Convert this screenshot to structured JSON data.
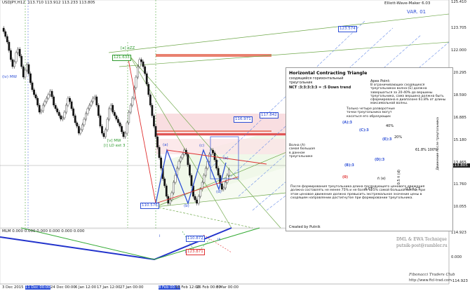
{
  "header": {
    "symbol_timeframe": "USDJPY,H12",
    "ohlc": "113.710 113.912 113.233 113.805",
    "indicator_name": "Elliott-Wave-Maker 6.03",
    "var_label": "VAR. 01"
  },
  "price_axis": {
    "labels": [
      "125.410",
      "123.705",
      "122.000",
      "120.295",
      "118.590",
      "116.885",
      "115.180",
      "113.465",
      "111.760",
      "110.055"
    ],
    "current_price": "113.805"
  },
  "indicator_axis": {
    "labels": [
      "114.923",
      "0.000",
      "-114.923"
    ]
  },
  "indicator_header": "MLM 0.000 0.000 0.000 0.000 0.000 0.000",
  "time_axis": {
    "labels": [
      "3 Dec 2015",
      "11 Dec 00:00",
      "24 Dec 00:00",
      "6 Jan 12:00",
      "17 Jan 12:00",
      "27 Jan 00:00",
      "8 Feb 00:00",
      "16 Feb 12:00",
      "26 Feb 00:00",
      "8 Mar 00:00"
    ]
  },
  "wave_labels": {
    "iv_mw": "(iv) MW",
    "v_mw": "[v] MW",
    "i_ld": "[i] LD ext 3",
    "a_ezz": "[a] eZZ",
    "a": "(a)",
    "b": "(b)",
    "c": "(c)",
    "d": "(d)",
    "e": "(e)",
    "i": "i",
    "ii": "ii",
    "iii": "iii"
  },
  "price_tags": {
    "p1": "123.574",
    "p2": "121.633",
    "p3": "117.842",
    "p4": "116.971",
    "p5": "110.576",
    "p6": "110.872",
    "p7": "123.871"
  },
  "info_box": {
    "title": "Horizontal Contracting Triangle",
    "subtitle_ru": "сходящийся горизонтальный треугольник",
    "formula": "NCT :3:3:3:3:3 = :5 Down trend",
    "apex_title": "Apex Point:",
    "apex_text": "В ограничивающих сходящихся треугольниках волна-(E) должна завершаться за 20-40% до вершины треугольника, сама вершина должна быть сформирована в диапазоне 61.8% от длины максимальной волны.",
    "touch_text": "Только четыре разворотные точки треугольника могут касаться его образующих",
    "wave_a_text": "Волна (А) самая большая в данном треугольнике",
    "after_text": "После формирования треугольника длина последующего ценового движения должна составлять не менее 75% и не более 125% самой большой волны, при этом ценовое движение должно превысить экстремальное значение цены в сходящем направлении достигнутое при формировании треугольника.",
    "right_vertical": "Движение после треугольника",
    "created_by": "Created by Putnik",
    "pt_a": "(A):3",
    "pt_b": "(B):3",
    "pt_c": "(C):3",
    "pt_d": "(D):3",
    "pt_e": "(E):3",
    "pt_0": "(0)",
    "pct40": "40%",
    "pct20": "20%",
    "pct618": "61.8% 100%",
    "t_ct": "ñ CT",
    "half_t": "0.5 ñ CT",
    "t_e": "ñ (e)",
    "t_d_vert": "0.5 ñ (d)"
  },
  "branding": {
    "line1": "DML & EWA Technique",
    "line2": "putnik-post@rambler.ru",
    "footer1": "Fibonacci Traders Club",
    "footer2": "http://www.ftcl-trad.com"
  },
  "colors": {
    "up_candle": "#333333",
    "down_candle": "#111111",
    "wave_blue": "#2d4fd6",
    "trend_red": "#e03030",
    "green_line": "#6fa84a",
    "pink_zone": "#f6c9cf",
    "salmon": "#e9806f"
  }
}
